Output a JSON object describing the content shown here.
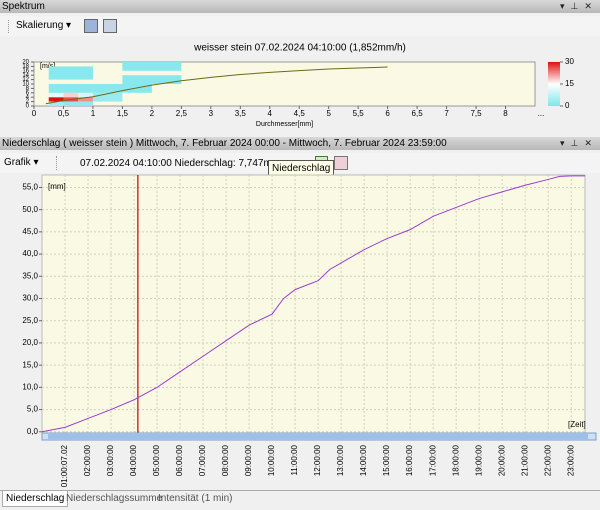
{
  "spectrum_panel": {
    "header": "Spektrum",
    "toolbar_button": "Skalierung"
  },
  "precip_panel": {
    "header": "Niederschlag ( weisser stein ) Mittwoch, 7. Februar 2024 00:00 - Mittwoch, 7. Februar 2024 23:59:00",
    "toolbar_button": "Grafik",
    "info": "07.02.2024 04:10:00 Niederschlag: 7,747mm",
    "tooltip": "Niederschlag"
  },
  "tabs": [
    "Niederschlag",
    "Niederschlagssumme",
    "Intensität (1 min)"
  ],
  "chart_data": [
    {
      "type": "heatmap",
      "title": "weisser stein 07.02.2024 04:10:00 (1,852mm/h)",
      "y_label": "[m/s]",
      "x_label": "Durchmesser[mm]",
      "xlim": [
        0,
        8.5
      ],
      "ylim": [
        0,
        20
      ],
      "xticks": [
        0,
        {
          "value": 0.5,
          "label": "0,5"
        },
        1,
        {
          "value": 1.5,
          "label": "1,5"
        },
        2,
        {
          "value": 2.5,
          "label": "2,5"
        },
        3,
        {
          "value": 3.5,
          "label": "3,5"
        },
        4,
        {
          "value": 4.5,
          "label": "4,5"
        },
        5,
        {
          "value": 5.5,
          "label": "5,5"
        },
        6,
        {
          "value": 6.5,
          "label": "6,5"
        },
        7,
        {
          "value": 7.5,
          "label": "7,5"
        },
        8
      ],
      "x_more": "...",
      "yticks": [
        0,
        2,
        4,
        6,
        8,
        10,
        12,
        14,
        16,
        18,
        20
      ],
      "cells": [
        {
          "x": [
            0.25,
            0.5
          ],
          "y": [
            2,
            4
          ],
          "count": 30
        },
        {
          "x": [
            0.5,
            0.75
          ],
          "y": [
            2,
            4
          ],
          "count": 26
        },
        {
          "x": [
            0.75,
            1
          ],
          "y": [
            2,
            4
          ],
          "count": 22
        },
        {
          "x": [
            0.25,
            0.5
          ],
          "y": [
            4,
            6
          ],
          "count": 12
        },
        {
          "x": [
            0.5,
            0.75
          ],
          "y": [
            4,
            6
          ],
          "count": 18
        },
        {
          "x": [
            0.75,
            1
          ],
          "y": [
            4,
            6
          ],
          "count": 10
        },
        {
          "x": [
            0.25,
            0.5
          ],
          "y": [
            0,
            2
          ],
          "count": 4
        },
        {
          "x": [
            0.5,
            1
          ],
          "y": [
            0,
            2
          ],
          "count": 2
        },
        {
          "x": [
            1,
            1.5
          ],
          "y": [
            2,
            6
          ],
          "count": 3
        },
        {
          "x": [
            0.25,
            1
          ],
          "y": [
            6,
            10
          ],
          "count": 1
        },
        {
          "x": [
            1,
            2
          ],
          "y": [
            6,
            10
          ],
          "count": 1
        },
        {
          "x": [
            0.25,
            1
          ],
          "y": [
            12,
            18
          ],
          "count": 1
        },
        {
          "x": [
            1.5,
            2.5
          ],
          "y": [
            10,
            14
          ],
          "count": 1
        },
        {
          "x": [
            1.5,
            2.5
          ],
          "y": [
            16,
            20
          ],
          "count": 1
        }
      ],
      "curve": {
        "color": "#6b6b14",
        "x": [
          0.2,
          0.5,
          1,
          1.5,
          2,
          2.5,
          3,
          3.5,
          4,
          4.5,
          5,
          5.5,
          6
        ],
        "values": [
          1,
          2.5,
          4.2,
          7,
          9.5,
          11.5,
          13,
          14.3,
          15.3,
          16.1,
          16.8,
          17.3,
          17.7
        ]
      },
      "colorbar": {
        "lim": [
          0,
          30
        ],
        "ticks": [
          0,
          15,
          30
        ],
        "colors": [
          "#7fe6ec",
          "#ffffff",
          "#e01010"
        ]
      }
    },
    {
      "type": "line",
      "y_label": "[mm]",
      "x_label": "[Zeit]",
      "xlim": [
        0,
        23.6
      ],
      "ylim": [
        -0.5,
        57.8
      ],
      "grid": true,
      "background": "#fafae4",
      "xticks": [
        {
          "value": 1,
          "label": "01:00:07.02"
        },
        {
          "value": 2,
          "label": "02:00:00"
        },
        {
          "value": 3,
          "label": "03:00:00"
        },
        {
          "value": 4,
          "label": "04:00:00"
        },
        {
          "value": 5,
          "label": "05:00:00"
        },
        {
          "value": 6,
          "label": "06:00:00"
        },
        {
          "value": 7,
          "label": "07:00:00"
        },
        {
          "value": 8,
          "label": "08:00:00"
        },
        {
          "value": 9,
          "label": "09:00:00"
        },
        {
          "value": 10,
          "label": "10:00:00"
        },
        {
          "value": 11,
          "label": "11:00:00"
        },
        {
          "value": 12,
          "label": "12:00:00"
        },
        {
          "value": 13,
          "label": "13:00:00"
        },
        {
          "value": 14,
          "label": "14:00:00"
        },
        {
          "value": 15,
          "label": "15:00:00"
        },
        {
          "value": 16,
          "label": "16:00:00"
        },
        {
          "value": 17,
          "label": "17:00:00"
        },
        {
          "value": 18,
          "label": "18:00:00"
        },
        {
          "value": 19,
          "label": "19:00:00"
        },
        {
          "value": 20,
          "label": "20:00:00"
        },
        {
          "value": 21,
          "label": "21:00:00"
        },
        {
          "value": 22,
          "label": "22:00:00"
        },
        {
          "value": 23,
          "label": "23:00:00"
        }
      ],
      "yticks": [
        {
          "value": 0,
          "label": "0,0"
        },
        {
          "value": 5,
          "label": "5,0"
        },
        {
          "value": 10,
          "label": "10,0"
        },
        {
          "value": 15,
          "label": "15,0"
        },
        {
          "value": 20,
          "label": "20,0"
        },
        {
          "value": 25,
          "label": "25,0"
        },
        {
          "value": 30,
          "label": "30,0"
        },
        {
          "value": 35,
          "label": "35,0"
        },
        {
          "value": 40,
          "label": "40,0"
        },
        {
          "value": 45,
          "label": "45,0"
        },
        {
          "value": 50,
          "label": "50,0"
        },
        {
          "value": 55,
          "label": "55,0"
        }
      ],
      "series": [
        {
          "color": "#9a3ccf",
          "x": [
            0,
            1,
            2,
            3,
            4,
            5,
            6,
            7,
            8,
            9,
            10,
            10.5,
            11,
            12,
            12.5,
            13,
            14,
            15,
            16,
            17,
            18,
            19,
            20,
            21,
            22,
            22.5,
            23,
            23.6
          ],
          "values": [
            0,
            1,
            3,
            5,
            7.2,
            10,
            13.5,
            17,
            20.5,
            24,
            26.5,
            30,
            32,
            34,
            36.5,
            38,
            41,
            43.5,
            45.5,
            48.5,
            50.5,
            52.5,
            54,
            55.5,
            56.8,
            57.5,
            57.6,
            57.6
          ]
        }
      ],
      "marker": {
        "x": 4.1667,
        "color": "#c00000"
      }
    }
  ]
}
